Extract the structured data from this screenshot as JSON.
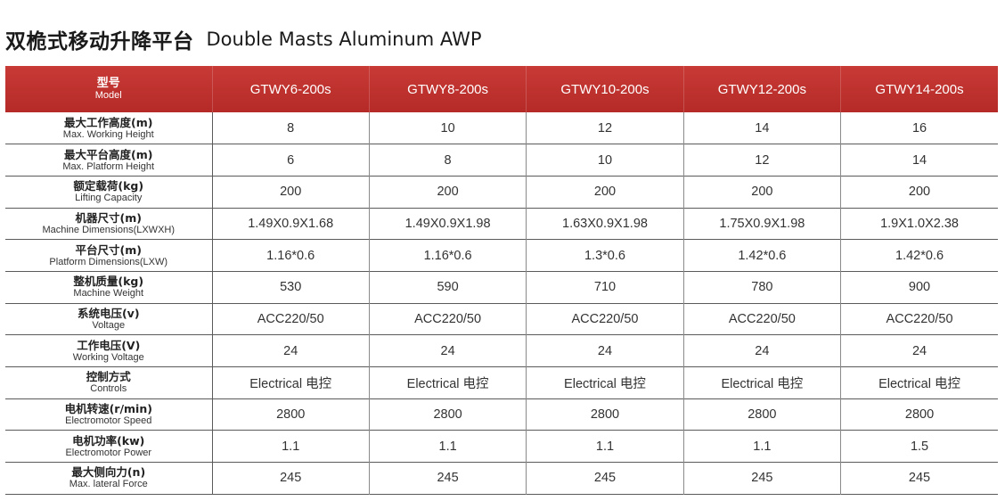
{
  "title": {
    "zh": "双桅式移动升降平台",
    "en": "Double Masts Aluminum AWP"
  },
  "header": {
    "label_zh": "型号",
    "label_en": "Model",
    "models": [
      "GTWY6-200s",
      "GTWY8-200s",
      "GTWY10-200s",
      "GTWY12-200s",
      "GTWY14-200s"
    ]
  },
  "rows": [
    {
      "zh": "最大工作高度(m)",
      "en": "Max. Working Height",
      "values": [
        "8",
        "10",
        "12",
        "14",
        "16"
      ]
    },
    {
      "zh": "最大平台高度(m)",
      "en": "Max. Platform Height",
      "values": [
        "6",
        "8",
        "10",
        "12",
        "14"
      ]
    },
    {
      "zh": "额定载荷(kg)",
      "en": "Lifting Capacity",
      "values": [
        "200",
        "200",
        "200",
        "200",
        "200"
      ]
    },
    {
      "zh": "机器尺寸(m)",
      "en": "Machine Dimensions(LXWXH)",
      "values": [
        "1.49X0.9X1.68",
        "1.49X0.9X1.98",
        "1.63X0.9X1.98",
        "1.75X0.9X1.98",
        "1.9X1.0X2.38"
      ]
    },
    {
      "zh": "平台尺寸(m)",
      "en": "Platform Dimensions(LXW)",
      "values": [
        "1.16*0.6",
        "1.16*0.6",
        "1.3*0.6",
        "1.42*0.6",
        "1.42*0.6"
      ]
    },
    {
      "zh": "整机质量(kg)",
      "en": "Machine Weight",
      "values": [
        "530",
        "590",
        "710",
        "780",
        "900"
      ]
    },
    {
      "zh": "系统电压(v)",
      "en": "Voltage",
      "values": [
        "ACC220/50",
        "ACC220/50",
        "ACC220/50",
        "ACC220/50",
        "ACC220/50"
      ]
    },
    {
      "zh": "工作电压(V)",
      "en": "Working Voltage",
      "values": [
        "24",
        "24",
        "24",
        "24",
        "24"
      ]
    },
    {
      "zh": "控制方式",
      "en": "Controls",
      "values": [
        "Electrical 电控",
        "Electrical 电控",
        "Electrical 电控",
        "Electrical 电控",
        "Electrical 电控"
      ]
    },
    {
      "zh": "电机转速(r/min)",
      "en": "Electromotor Speed",
      "values": [
        "2800",
        "2800",
        "2800",
        "2800",
        "2800"
      ]
    },
    {
      "zh": "电机功率(kw)",
      "en": "Electromotor Power",
      "values": [
        "1.1",
        "1.1",
        "1.1",
        "1.1",
        "1.5"
      ]
    },
    {
      "zh": "最大侧向力(n)",
      "en": "Max. lateral Force",
      "values": [
        "245",
        "245",
        "245",
        "245",
        "245"
      ]
    }
  ],
  "colors": {
    "header_bg": "#b52a27",
    "header_text": "#ffffff",
    "row_rule": "#5a5a5a",
    "text": "#333333"
  }
}
